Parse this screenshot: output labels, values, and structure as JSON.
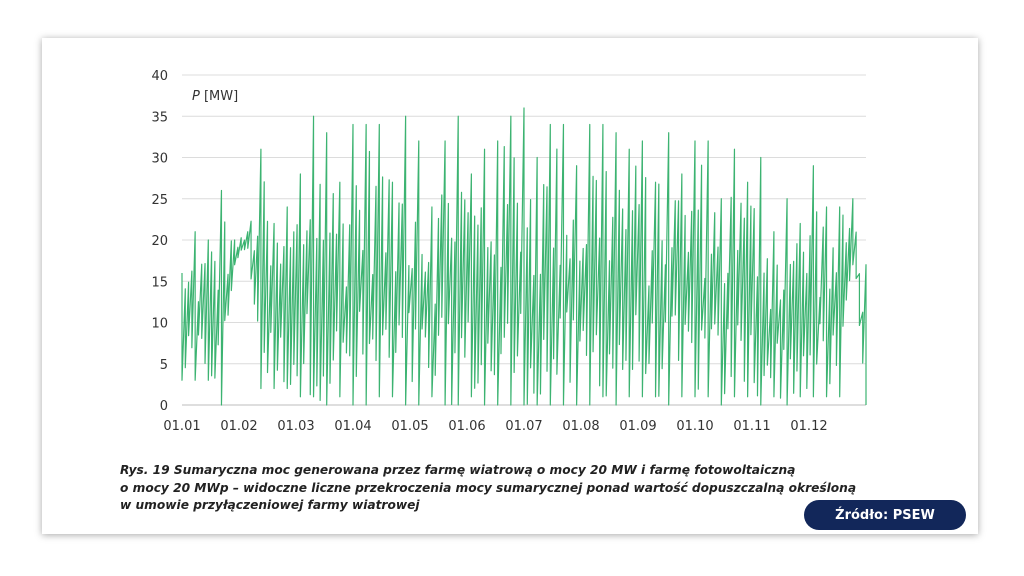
{
  "chart_data": {
    "type": "line",
    "ylabel": "P [MW]",
    "xlabel": "",
    "ylim": [
      0,
      40
    ],
    "yticks": [
      0,
      5,
      10,
      15,
      20,
      25,
      30,
      35,
      40
    ],
    "xticks": [
      "01.01",
      "01.02",
      "01.03",
      "01.04",
      "01.05",
      "01.06",
      "01.07",
      "01.08",
      "01.09",
      "01.10",
      "01.11",
      "01.12"
    ],
    "grid": "horizontal",
    "series": [
      {
        "color": "#3cb371",
        "x": [
          "01.01",
          "08.01",
          "15.01",
          "22.01",
          "29.01",
          "05.02",
          "12.02",
          "19.02",
          "26.02",
          "05.03",
          "12.03",
          "19.03",
          "26.03",
          "02.04",
          "09.04",
          "16.04",
          "23.04",
          "30.04",
          "07.05",
          "14.05",
          "21.05",
          "28.05",
          "04.06",
          "11.06",
          "18.06",
          "25.06",
          "02.07",
          "09.07",
          "16.07",
          "23.07",
          "30.07",
          "06.08",
          "13.08",
          "20.08",
          "27.08",
          "03.09",
          "10.09",
          "17.09",
          "24.09",
          "01.10",
          "08.10",
          "15.10",
          "22.10",
          "29.10",
          "05.11",
          "12.11",
          "19.11",
          "26.11",
          "03.12",
          "10.12",
          "17.12",
          "24.12",
          "31.12"
        ],
        "max": [
          16,
          21,
          20,
          26,
          20,
          21,
          31,
          22,
          24,
          28,
          35,
          33,
          27,
          34,
          34,
          34,
          27,
          35,
          32,
          24,
          32,
          35,
          28,
          31,
          32,
          35,
          36,
          30,
          34,
          34,
          29,
          34,
          34,
          33,
          31,
          32,
          27,
          33,
          28,
          32,
          32,
          25,
          31,
          27,
          30,
          21,
          25,
          22,
          29,
          24,
          24,
          25,
          17
        ],
        "min": [
          3,
          3,
          3,
          0,
          17,
          19,
          2,
          2,
          2,
          1,
          1,
          0,
          1,
          0,
          0,
          1,
          1,
          0,
          0,
          1,
          0,
          0,
          1,
          0,
          0,
          0,
          0,
          0,
          0,
          0,
          0,
          0,
          1,
          0,
          1,
          1,
          1,
          0,
          1,
          1,
          1,
          0,
          1,
          1,
          0,
          1,
          0,
          1,
          1,
          1,
          1,
          17,
          0
        ]
      }
    ]
  },
  "caption": {
    "line1": "Rys. 19  Sumaryczna moc generowana przez farmę wiatrową o mocy 20 MW i farmę fotowoltaiczną",
    "line2": "o mocy 20 MWp – widoczne liczne przekroczenia mocy sumarycznej ponad wartość dopuszczalną określoną",
    "line3": "w umowie przyłączeniowej farmy wiatrowej"
  },
  "source_label": "Źródło: PSEW"
}
